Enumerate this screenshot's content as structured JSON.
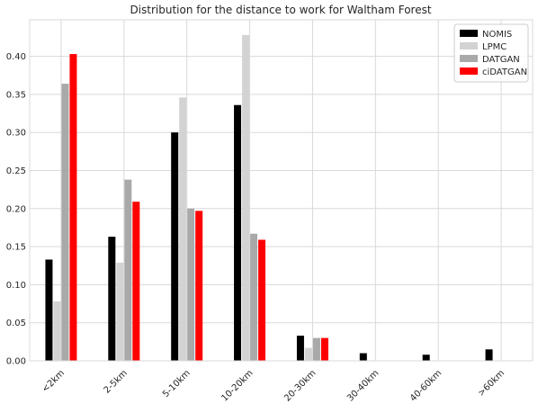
{
  "chart_data": {
    "type": "bar",
    "title": "Distribution for the distance to work for Waltham Forest",
    "xlabel": "",
    "ylabel": "",
    "categories": [
      "<2km",
      "2-5km",
      "5-10km",
      "10-20km",
      "20-30km",
      "30-40km",
      "40-60km",
      ">60km"
    ],
    "ylim": [
      0,
      0.448
    ],
    "yticks": [
      0.0,
      0.05,
      0.1,
      0.15,
      0.2,
      0.25,
      0.3,
      0.35,
      0.4
    ],
    "ytick_labels": [
      "0.00",
      "0.05",
      "0.10",
      "0.15",
      "0.20",
      "0.25",
      "0.30",
      "0.35",
      "0.40"
    ],
    "grid": true,
    "legend_position": "top-right",
    "series": [
      {
        "name": "NOMIS",
        "color": "#000000",
        "values": [
          0.133,
          0.163,
          0.3,
          0.336,
          0.033,
          0.01,
          0.008,
          0.015
        ]
      },
      {
        "name": "LPMC",
        "color": "#d3d3d3",
        "values": [
          0.078,
          0.129,
          0.346,
          0.428,
          0.017,
          0.0,
          0.0,
          0.0
        ]
      },
      {
        "name": "DATGAN",
        "color": "#a9a9a9",
        "values": [
          0.364,
          0.238,
          0.2,
          0.167,
          0.03,
          0.0,
          0.0,
          0.0
        ]
      },
      {
        "name": "ciDATGAN",
        "color": "#ff0000",
        "values": [
          0.403,
          0.209,
          0.197,
          0.159,
          0.03,
          0.0,
          0.0,
          0.0
        ]
      }
    ]
  }
}
